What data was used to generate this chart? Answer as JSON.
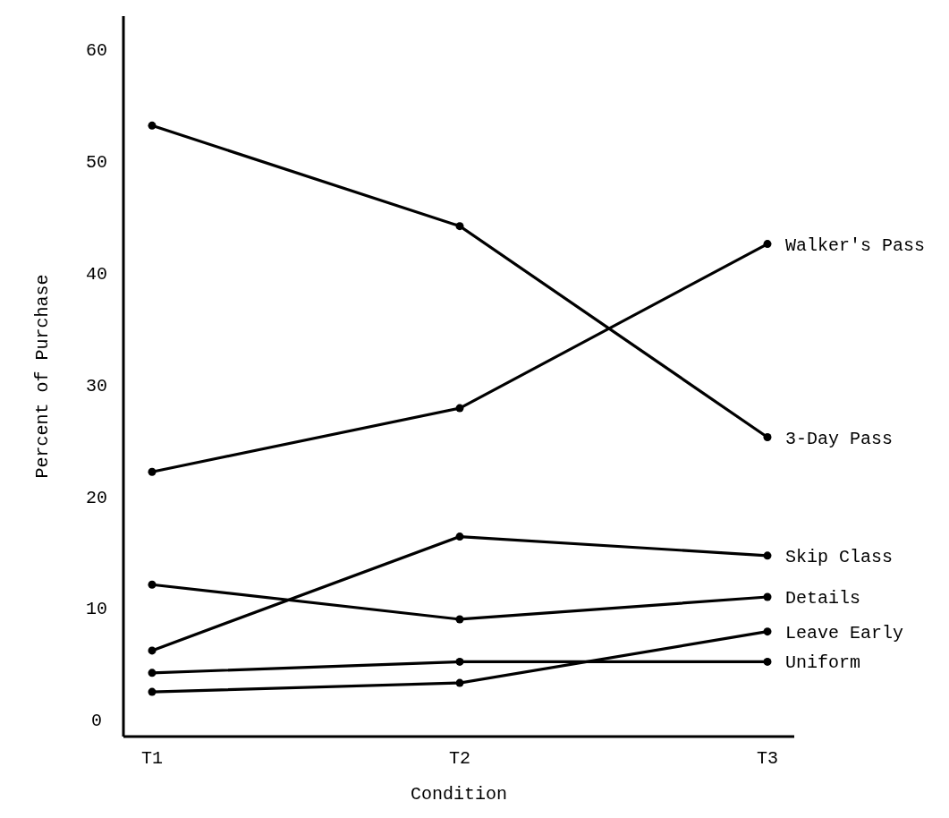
{
  "chart_data": {
    "type": "line",
    "xlabel": "Condition",
    "ylabel": "Percent of Purchase",
    "categories": [
      "T1",
      "T2",
      "T3"
    ],
    "series": [
      {
        "name": "Walker's Pass",
        "color": "#000000",
        "values": [
          22.2,
          27.9,
          42.6
        ]
      },
      {
        "name": "3-Day Pass",
        "color": "#000000",
        "values": [
          53.2,
          44.2,
          25.3
        ]
      },
      {
        "name": "Skip Class",
        "color": "#000000",
        "values": [
          6.2,
          16.4,
          14.7
        ]
      },
      {
        "name": "Details",
        "color": "#000000",
        "values": [
          12.1,
          9.0,
          11.0
        ]
      },
      {
        "name": "Leave Early",
        "color": "#000000",
        "values": [
          2.5,
          3.3,
          7.9
        ]
      },
      {
        "name": "Uniform",
        "color": "#000000",
        "values": [
          4.2,
          5.2,
          5.2
        ]
      }
    ],
    "ylim": [
      -1.5,
      63
    ],
    "yticks": [
      0,
      10,
      20,
      30,
      40,
      50,
      60
    ],
    "grid": false,
    "marker": "circle",
    "line_style": "solid"
  }
}
